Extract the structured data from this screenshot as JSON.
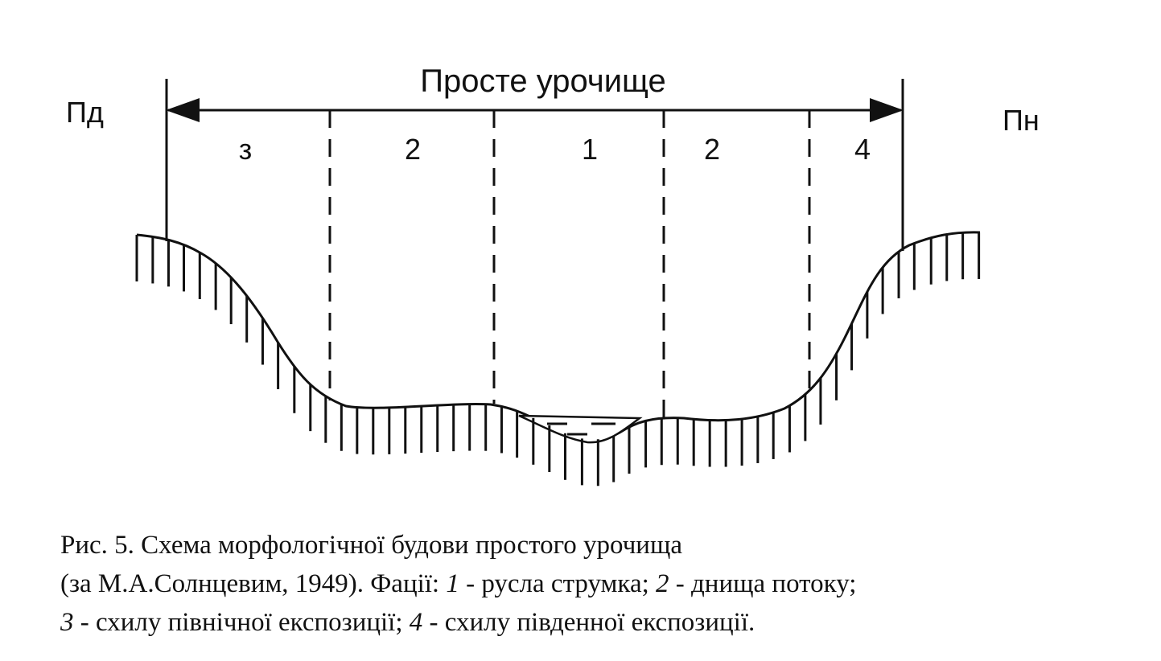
{
  "diagram": {
    "title": "Просте урочище",
    "left_label": "Пд",
    "right_label": "Пн",
    "facies_labels": [
      "з",
      "2",
      "1",
      "2",
      "4"
    ]
  },
  "caption": {
    "title": "Рис. 5. Схема морфологічної будови простого урочища",
    "source": "(за М.А.Солнцевим, 1949). Фації:",
    "facies": [
      {
        "number": "1",
        "text": "- русла струмка;"
      },
      {
        "number": "2",
        "text": "- днища потоку;"
      },
      {
        "number": "3",
        "text": "- схилу північної експозиції;"
      },
      {
        "number": "4",
        "text": "- схилу південної експозиції."
      }
    ]
  }
}
